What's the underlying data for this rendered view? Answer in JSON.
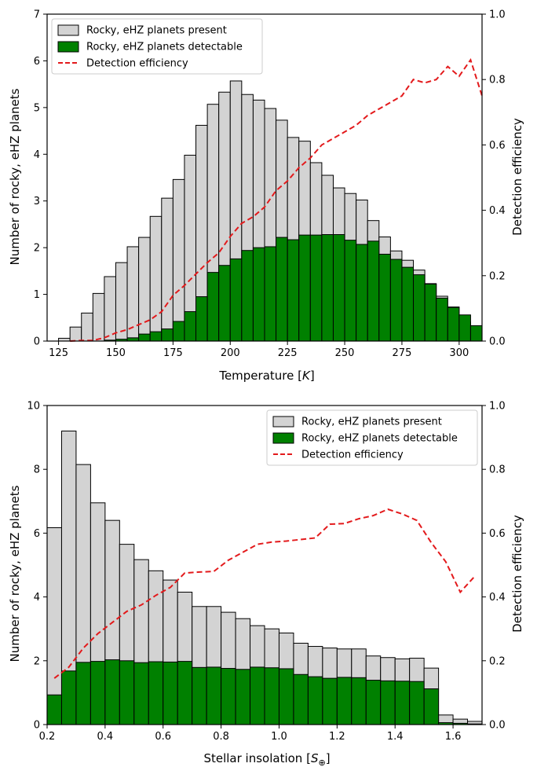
{
  "chart_data": [
    {
      "type": "bar",
      "xlabel_main": "Temperature [",
      "xlabel_italic": "K",
      "xlabel_end": "]",
      "ylabel": "Number of rocky, eHZ planets",
      "ylabel_right": "Detection efficiency",
      "xlim": [
        120,
        310
      ],
      "ylim": [
        0,
        7
      ],
      "ylim_right": [
        0,
        1
      ],
      "x_ticks": [
        125,
        150,
        175,
        200,
        225,
        250,
        275,
        300
      ],
      "y_ticks": [
        0,
        1,
        2,
        3,
        4,
        5,
        6,
        7
      ],
      "y_right_ticks": [
        "0.0",
        "0.2",
        "0.4",
        "0.6",
        "0.8",
        "1.0"
      ],
      "legend_position": "top-left",
      "bin_width": 5,
      "bin_starts": [
        125,
        130,
        135,
        140,
        145,
        150,
        155,
        160,
        165,
        170,
        175,
        180,
        185,
        190,
        195,
        200,
        205,
        210,
        215,
        220,
        225,
        230,
        235,
        240,
        245,
        250,
        255,
        260,
        265,
        270,
        275,
        280,
        285,
        290,
        295,
        300,
        305
      ],
      "series": [
        {
          "name": "Rocky, eHZ planets present",
          "color": "#d3d3d3",
          "values": [
            0.06,
            0.3,
            0.6,
            1.02,
            1.38,
            1.68,
            2.02,
            2.22,
            2.67,
            3.06,
            3.46,
            3.98,
            4.62,
            5.07,
            5.33,
            5.57,
            5.28,
            5.16,
            4.98,
            4.73,
            4.36,
            4.28,
            3.82,
            3.55,
            3.28,
            3.16,
            3.02,
            2.58,
            2.23,
            1.93,
            1.73,
            1.52,
            1.23,
            0.96,
            0.73,
            0.41,
            0.08
          ]
        },
        {
          "name": "Rocky, eHZ planets detectable",
          "color": "#008000",
          "values": [
            0,
            0,
            0,
            0,
            0.02,
            0.04,
            0.07,
            0.15,
            0.2,
            0.26,
            0.42,
            0.63,
            0.95,
            1.47,
            1.62,
            1.76,
            1.94,
            2.0,
            2.02,
            2.22,
            2.17,
            2.27,
            2.27,
            2.28,
            2.28,
            2.16,
            2.07,
            2.14,
            1.86,
            1.75,
            1.58,
            1.42,
            1.22,
            0.92,
            0.72,
            0.56,
            0.33
          ]
        },
        {
          "name": "Detection efficiency",
          "color": "#e31a1c",
          "style": "dashed",
          "x": [
            130,
            135,
            140,
            145,
            150,
            155,
            160,
            165,
            170,
            175,
            180,
            185,
            190,
            195,
            200,
            205,
            210,
            215,
            220,
            225,
            230,
            235,
            240,
            245,
            250,
            255,
            260,
            265,
            270,
            275,
            280,
            285,
            290,
            295,
            300,
            305,
            310
          ],
          "values": [
            0.0,
            0.002,
            0.002,
            0.01,
            0.025,
            0.035,
            0.05,
            0.065,
            0.09,
            0.14,
            0.17,
            0.205,
            0.24,
            0.27,
            0.32,
            0.36,
            0.38,
            0.41,
            0.46,
            0.49,
            0.53,
            0.56,
            0.6,
            0.62,
            0.64,
            0.66,
            0.69,
            0.71,
            0.73,
            0.75,
            0.8,
            0.79,
            0.8,
            0.84,
            0.81,
            0.86,
            0.75
          ]
        }
      ]
    },
    {
      "type": "bar",
      "xlabel_main": "Stellar insolation [",
      "xlabel_italic": "S",
      "xlabel_sub": "⊕",
      "xlabel_end": "]",
      "ylabel": "Number of rocky, eHZ planets",
      "ylabel_right": "Detection efficiency",
      "xlim": [
        0.2,
        1.7
      ],
      "ylim": [
        0,
        10
      ],
      "ylim_right": [
        0,
        1
      ],
      "x_ticks": [
        "0.2",
        "0.4",
        "0.6",
        "0.8",
        "1.0",
        "1.2",
        "1.4",
        "1.6"
      ],
      "y_ticks": [
        0,
        2,
        4,
        6,
        8,
        10
      ],
      "y_right_ticks": [
        "0.0",
        "0.2",
        "0.4",
        "0.6",
        "0.8",
        "1.0"
      ],
      "legend_position": "top-right",
      "bin_width": 0.05,
      "bin_starts": [
        0.2,
        0.25,
        0.3,
        0.35,
        0.4,
        0.45,
        0.5,
        0.55,
        0.6,
        0.65,
        0.7,
        0.75,
        0.8,
        0.85,
        0.9,
        0.95,
        1.0,
        1.05,
        1.1,
        1.15,
        1.2,
        1.25,
        1.3,
        1.35,
        1.4,
        1.45,
        1.5,
        1.55,
        1.6,
        1.65
      ],
      "series": [
        {
          "name": "Rocky, eHZ planets present",
          "color": "#d3d3d3",
          "values": [
            6.17,
            9.2,
            8.15,
            6.95,
            6.4,
            5.65,
            5.17,
            4.82,
            4.53,
            4.15,
            3.7,
            3.7,
            3.52,
            3.32,
            3.1,
            3.0,
            2.87,
            2.55,
            2.45,
            2.4,
            2.37,
            2.37,
            2.15,
            2.1,
            2.06,
            2.08,
            1.77,
            0.3,
            0.17,
            0.1
          ]
        },
        {
          "name": "Rocky, eHZ planets detectable",
          "color": "#008000",
          "values": [
            0.93,
            1.68,
            1.95,
            1.98,
            2.03,
            2.0,
            1.94,
            1.97,
            1.96,
            1.98,
            1.79,
            1.8,
            1.76,
            1.73,
            1.8,
            1.78,
            1.75,
            1.57,
            1.5,
            1.45,
            1.48,
            1.47,
            1.39,
            1.37,
            1.36,
            1.35,
            1.12,
            0.06,
            0.04,
            0.02
          ]
        }
      ],
      "efficiency": {
        "name": "Detection efficiency",
        "color": "#e31a1c",
        "style": "dashed",
        "x": [
          0.225,
          0.275,
          0.325,
          0.375,
          0.425,
          0.475,
          0.525,
          0.575,
          0.625,
          0.675,
          0.725,
          0.775,
          0.825,
          0.875,
          0.925,
          0.975,
          1.025,
          1.075,
          1.125,
          1.175,
          1.225,
          1.275,
          1.325,
          1.375,
          1.425,
          1.475,
          1.525,
          1.575,
          1.625,
          1.675
        ],
        "values": [
          0.145,
          0.18,
          0.24,
          0.285,
          0.32,
          0.355,
          0.375,
          0.405,
          0.43,
          0.475,
          0.478,
          0.48,
          0.515,
          0.54,
          0.565,
          0.572,
          0.575,
          0.58,
          0.585,
          0.628,
          0.63,
          0.645,
          0.655,
          0.675,
          0.66,
          0.64,
          0.57,
          0.51,
          0.415,
          0.465
        ]
      }
    }
  ]
}
